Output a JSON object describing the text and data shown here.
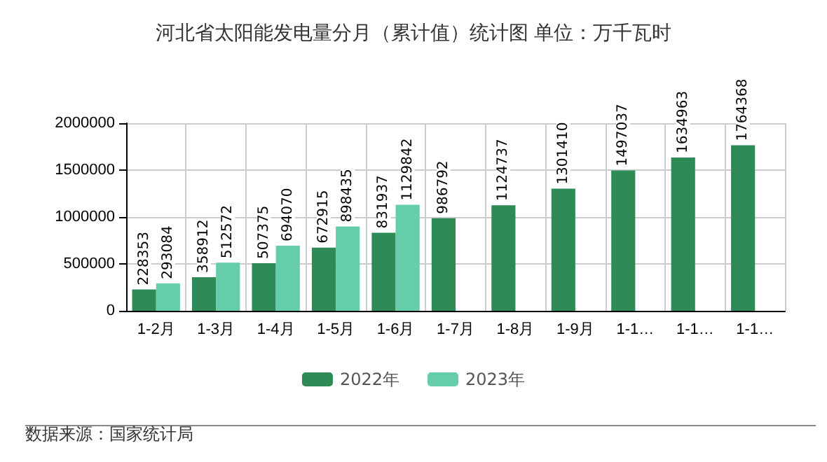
{
  "chart_data": {
    "type": "bar",
    "title": "河北省太阳能发电量分月（累计值）统计图 单位：万千瓦时",
    "categories": [
      "1-2月",
      "1-3月",
      "1-4月",
      "1-5月",
      "1-6月",
      "1-7月",
      "1-8月",
      "1-9月",
      "1-1…",
      "1-1…",
      "1-1…"
    ],
    "series": [
      {
        "name": "2022年",
        "color": "#2e8b57",
        "values": [
          228353,
          358912,
          507375,
          672915,
          831937,
          986792,
          1124737,
          1301410,
          1497037,
          1634963,
          1764368
        ]
      },
      {
        "name": "2023年",
        "color": "#66cdaa",
        "values": [
          293084,
          512572,
          694070,
          898435,
          1129842,
          null,
          null,
          null,
          null,
          null,
          null
        ]
      }
    ],
    "ylim": [
      0,
      2000000
    ],
    "yticks": [
      0,
      500000,
      1000000,
      1500000,
      2000000
    ],
    "grid": true,
    "legend": "bottom",
    "data_labels": true,
    "annotations": [
      "数据来源：国家统计局"
    ]
  }
}
